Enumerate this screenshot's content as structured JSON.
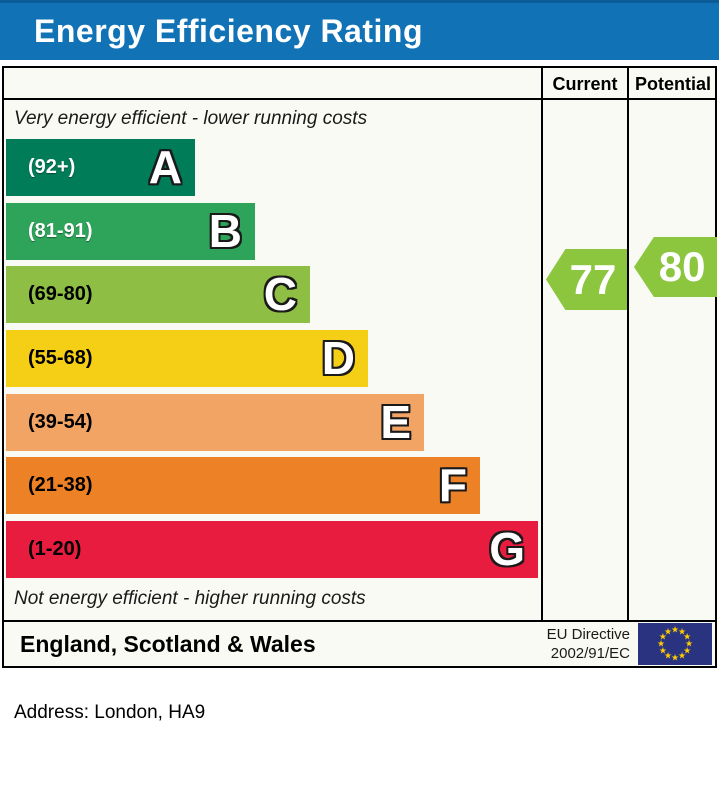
{
  "header": {
    "title": "Energy Efficiency Rating"
  },
  "columns": {
    "current": "Current",
    "potential": "Potential"
  },
  "notes": {
    "top": "Very energy efficient - lower running costs",
    "bottom": "Not energy efficient - higher running costs"
  },
  "bands": [
    {
      "letter": "A",
      "range": "(92+)"
    },
    {
      "letter": "B",
      "range": "(81-91)"
    },
    {
      "letter": "C",
      "range": "(69-80)"
    },
    {
      "letter": "D",
      "range": "(55-68)"
    },
    {
      "letter": "E",
      "range": "(39-54)"
    },
    {
      "letter": "F",
      "range": "(21-38)"
    },
    {
      "letter": "G",
      "range": "(1-20)"
    }
  ],
  "ratings": {
    "current": "77",
    "potential": "80"
  },
  "footer": {
    "region": "England, Scotland & Wales",
    "directive_line1": "EU Directive",
    "directive_line2": "2002/91/EC",
    "star_icon": "★"
  },
  "address_line": "Address: London, HA9",
  "colors": {
    "header_blue": "#1173B6",
    "header_blue_dark": "#0B5C99",
    "band_a": "#007D58",
    "band_b": "#2EA45A",
    "band_c": "#8EBE43",
    "band_d": "#F5CE16",
    "band_e": "#F2A465",
    "band_f": "#ED8126",
    "band_g": "#E81C3F",
    "arrow_green": "#8CC63F",
    "flag_navy": "#293380",
    "star_yellow": "#FFCC00"
  },
  "chart_data": {
    "type": "bar",
    "title": "Energy Efficiency Rating",
    "bands": [
      {
        "letter": "A",
        "range_label": "(92+)",
        "min": 92,
        "max": 100,
        "color": "#007D58"
      },
      {
        "letter": "B",
        "range_label": "(81-91)",
        "min": 81,
        "max": 91,
        "color": "#2EA45A"
      },
      {
        "letter": "C",
        "range_label": "(69-80)",
        "min": 69,
        "max": 80,
        "color": "#8EBE43"
      },
      {
        "letter": "D",
        "range_label": "(55-68)",
        "min": 55,
        "max": 68,
        "color": "#F5CE16"
      },
      {
        "letter": "E",
        "range_label": "(39-54)",
        "min": 39,
        "max": 54,
        "color": "#F2A465"
      },
      {
        "letter": "F",
        "range_label": "(21-38)",
        "min": 21,
        "max": 38,
        "color": "#ED8126"
      },
      {
        "letter": "G",
        "range_label": "(1-20)",
        "min": 1,
        "max": 20,
        "color": "#E81C3F"
      }
    ],
    "current": 77,
    "potential": 80,
    "current_band": "C",
    "potential_band": "C",
    "annotations": [
      "Very energy efficient - lower running costs",
      "Not energy efficient - higher running costs"
    ],
    "legend_columns": [
      "Current",
      "Potential"
    ],
    "footer_region": "England, Scotland & Wales",
    "directive": "EU Directive 2002/91/EC",
    "address": "Address: London, HA9"
  }
}
